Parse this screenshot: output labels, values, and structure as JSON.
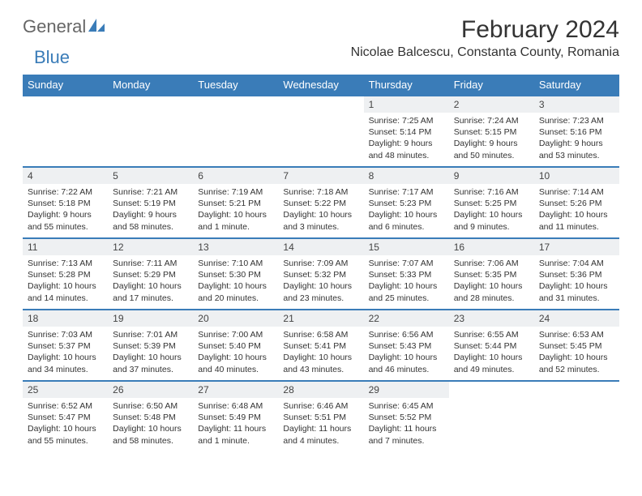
{
  "logo": {
    "text1": "General",
    "text2": "Blue"
  },
  "title": "February 2024",
  "location": "Nicolae Balcescu, Constanta County, Romania",
  "colors": {
    "header_bg": "#3a7cb8",
    "header_text": "#ffffff",
    "daynum_bg": "#eef0f2",
    "border": "#3a7cb8"
  },
  "weekdays": [
    "Sunday",
    "Monday",
    "Tuesday",
    "Wednesday",
    "Thursday",
    "Friday",
    "Saturday"
  ],
  "weeks": [
    [
      null,
      null,
      null,
      null,
      {
        "n": "1",
        "sr": "7:25 AM",
        "ss": "5:14 PM",
        "dl": "9 hours and 48 minutes."
      },
      {
        "n": "2",
        "sr": "7:24 AM",
        "ss": "5:15 PM",
        "dl": "9 hours and 50 minutes."
      },
      {
        "n": "3",
        "sr": "7:23 AM",
        "ss": "5:16 PM",
        "dl": "9 hours and 53 minutes."
      }
    ],
    [
      {
        "n": "4",
        "sr": "7:22 AM",
        "ss": "5:18 PM",
        "dl": "9 hours and 55 minutes."
      },
      {
        "n": "5",
        "sr": "7:21 AM",
        "ss": "5:19 PM",
        "dl": "9 hours and 58 minutes."
      },
      {
        "n": "6",
        "sr": "7:19 AM",
        "ss": "5:21 PM",
        "dl": "10 hours and 1 minute."
      },
      {
        "n": "7",
        "sr": "7:18 AM",
        "ss": "5:22 PM",
        "dl": "10 hours and 3 minutes."
      },
      {
        "n": "8",
        "sr": "7:17 AM",
        "ss": "5:23 PM",
        "dl": "10 hours and 6 minutes."
      },
      {
        "n": "9",
        "sr": "7:16 AM",
        "ss": "5:25 PM",
        "dl": "10 hours and 9 minutes."
      },
      {
        "n": "10",
        "sr": "7:14 AM",
        "ss": "5:26 PM",
        "dl": "10 hours and 11 minutes."
      }
    ],
    [
      {
        "n": "11",
        "sr": "7:13 AM",
        "ss": "5:28 PM",
        "dl": "10 hours and 14 minutes."
      },
      {
        "n": "12",
        "sr": "7:11 AM",
        "ss": "5:29 PM",
        "dl": "10 hours and 17 minutes."
      },
      {
        "n": "13",
        "sr": "7:10 AM",
        "ss": "5:30 PM",
        "dl": "10 hours and 20 minutes."
      },
      {
        "n": "14",
        "sr": "7:09 AM",
        "ss": "5:32 PM",
        "dl": "10 hours and 23 minutes."
      },
      {
        "n": "15",
        "sr": "7:07 AM",
        "ss": "5:33 PM",
        "dl": "10 hours and 25 minutes."
      },
      {
        "n": "16",
        "sr": "7:06 AM",
        "ss": "5:35 PM",
        "dl": "10 hours and 28 minutes."
      },
      {
        "n": "17",
        "sr": "7:04 AM",
        "ss": "5:36 PM",
        "dl": "10 hours and 31 minutes."
      }
    ],
    [
      {
        "n": "18",
        "sr": "7:03 AM",
        "ss": "5:37 PM",
        "dl": "10 hours and 34 minutes."
      },
      {
        "n": "19",
        "sr": "7:01 AM",
        "ss": "5:39 PM",
        "dl": "10 hours and 37 minutes."
      },
      {
        "n": "20",
        "sr": "7:00 AM",
        "ss": "5:40 PM",
        "dl": "10 hours and 40 minutes."
      },
      {
        "n": "21",
        "sr": "6:58 AM",
        "ss": "5:41 PM",
        "dl": "10 hours and 43 minutes."
      },
      {
        "n": "22",
        "sr": "6:56 AM",
        "ss": "5:43 PM",
        "dl": "10 hours and 46 minutes."
      },
      {
        "n": "23",
        "sr": "6:55 AM",
        "ss": "5:44 PM",
        "dl": "10 hours and 49 minutes."
      },
      {
        "n": "24",
        "sr": "6:53 AM",
        "ss": "5:45 PM",
        "dl": "10 hours and 52 minutes."
      }
    ],
    [
      {
        "n": "25",
        "sr": "6:52 AM",
        "ss": "5:47 PM",
        "dl": "10 hours and 55 minutes."
      },
      {
        "n": "26",
        "sr": "6:50 AM",
        "ss": "5:48 PM",
        "dl": "10 hours and 58 minutes."
      },
      {
        "n": "27",
        "sr": "6:48 AM",
        "ss": "5:49 PM",
        "dl": "11 hours and 1 minute."
      },
      {
        "n": "28",
        "sr": "6:46 AM",
        "ss": "5:51 PM",
        "dl": "11 hours and 4 minutes."
      },
      {
        "n": "29",
        "sr": "6:45 AM",
        "ss": "5:52 PM",
        "dl": "11 hours and 7 minutes."
      },
      null,
      null
    ]
  ],
  "labels": {
    "sunrise": "Sunrise: ",
    "sunset": "Sunset: ",
    "daylight": "Daylight: "
  }
}
